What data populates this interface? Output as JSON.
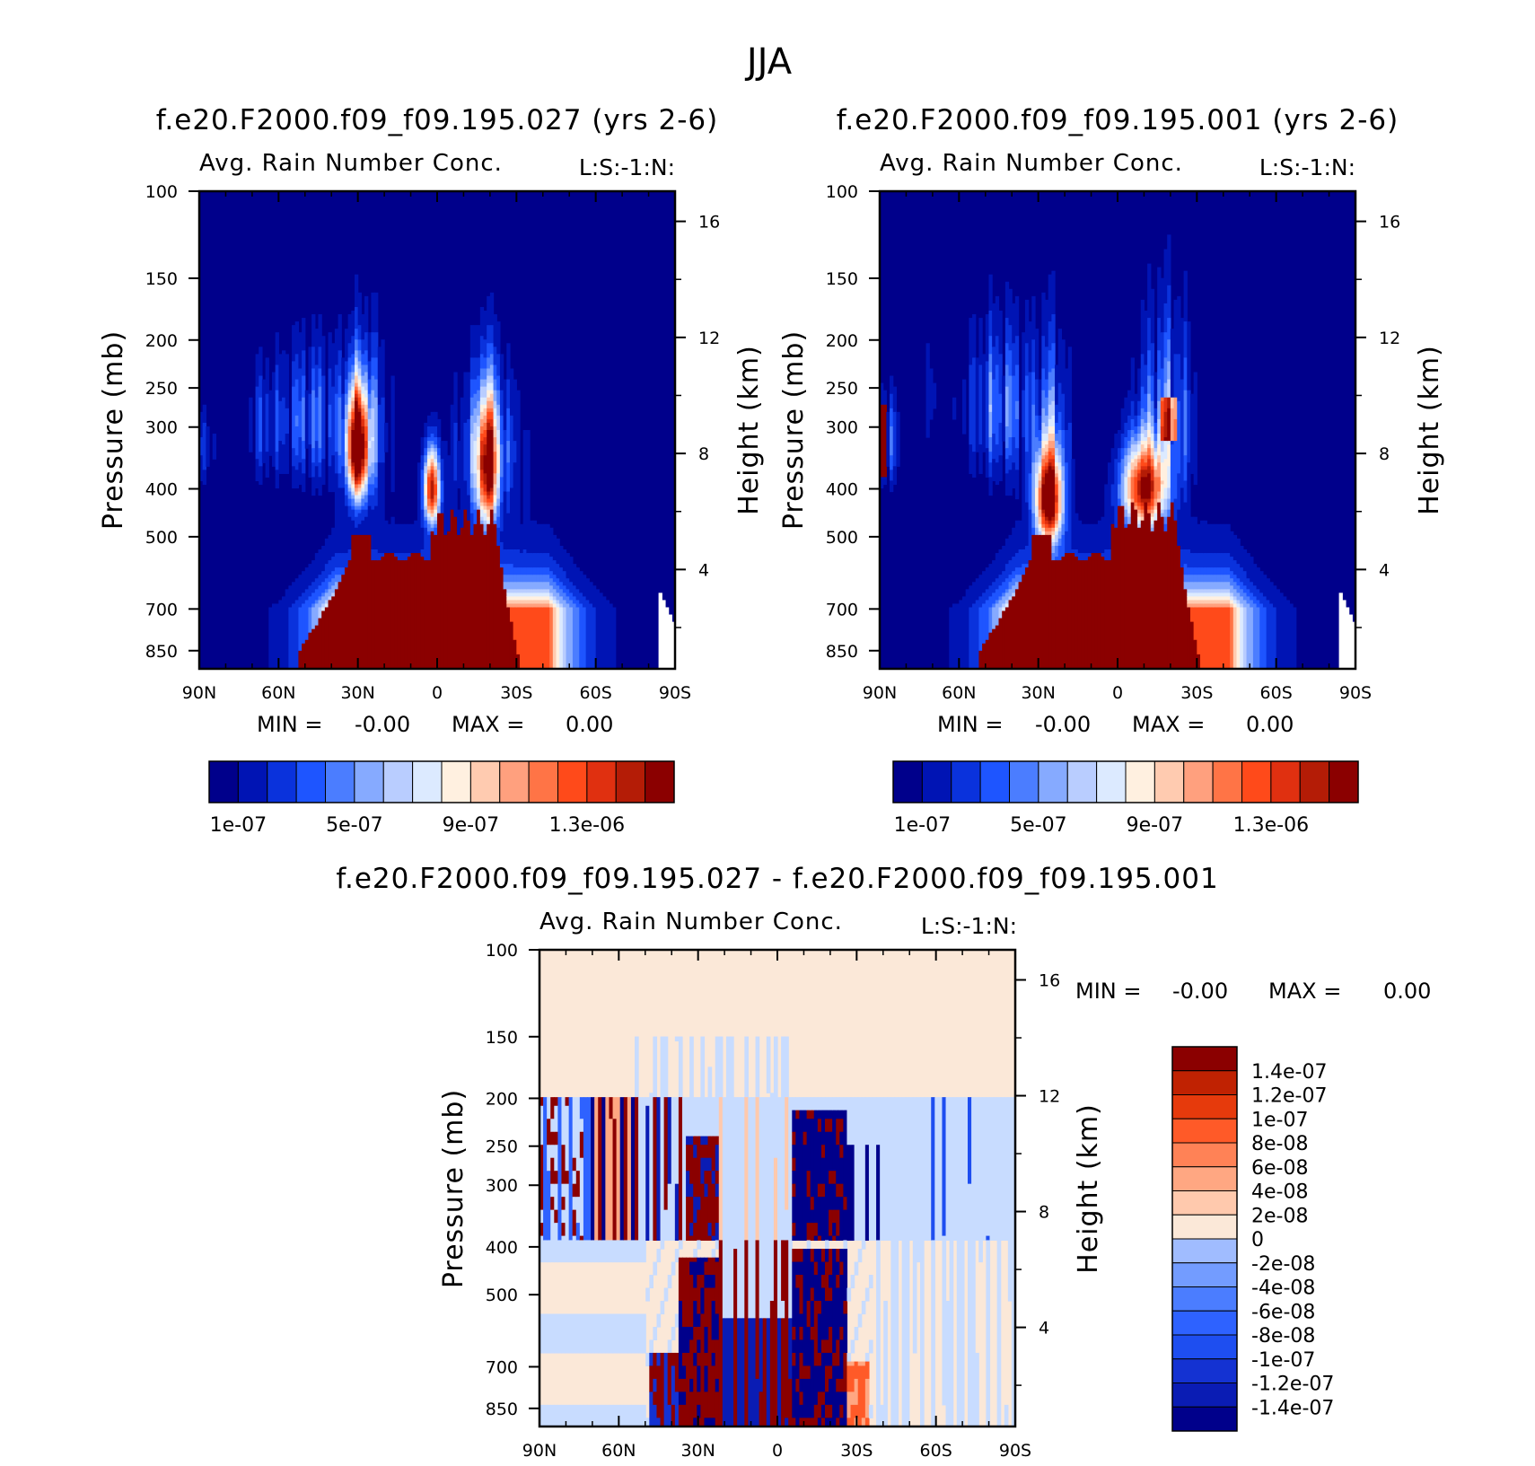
{
  "figure_title": "JJA",
  "colors": {
    "seq": [
      "#00008b",
      "#0014b4",
      "#0a32dc",
      "#1e55ff",
      "#4b7dff",
      "#86aaff",
      "#b9cdff",
      "#dceaff",
      "#fff0e0",
      "#ffcbb0",
      "#ffa07e",
      "#ff7446",
      "#ff4a1a",
      "#e03010",
      "#b41c06",
      "#8b0000"
    ],
    "diff": [
      "#00008b",
      "#0a1cb4",
      "#1432d2",
      "#1e4ef0",
      "#2e62ff",
      "#4b7dff",
      "#739cff",
      "#a0bcff",
      "#c8dcff",
      "#fbe8d8",
      "#ffc9ad",
      "#ffa782",
      "#ff8256",
      "#ff5a28",
      "#e63a0c",
      "#c02202",
      "#8b0000"
    ]
  },
  "chart_data": [
    {
      "type": "heatmap",
      "id": "panel-1",
      "title": "f.e20.F2000.f09_f09.195.027 (yrs 2-6)",
      "subtitle": "Avg. Rain Number Conc.",
      "code": "L:S:-1:N:",
      "xlabel": "",
      "ylabel": "Pressure (mb)",
      "ylabel_right": "Height (km)",
      "x_ticks": [
        "90N",
        "60N",
        "30N",
        "0",
        "30S",
        "60S",
        "90S"
      ],
      "xlim": [
        90,
        -90
      ],
      "y_ticks": [
        100,
        150,
        200,
        250,
        300,
        400,
        500,
        700,
        850
      ],
      "ylim": [
        100,
        925
      ],
      "y_scale": "log",
      "y_right_ticks": [
        4,
        8,
        12,
        16
      ],
      "min_label": "MIN =",
      "min_value": "-0.00",
      "max_label": "MAX =",
      "max_value": "0.00",
      "colorbar_labels": [
        "1e-07",
        "5e-07",
        "9e-07",
        "1.3e-06"
      ],
      "colorbar_levels": 16
    },
    {
      "type": "heatmap",
      "id": "panel-2",
      "title": "f.e20.F2000.f09_f09.195.001 (yrs 2-6)",
      "subtitle": "Avg. Rain Number Conc.",
      "code": "L:S:-1:N:",
      "xlabel": "",
      "ylabel": "Pressure (mb)",
      "ylabel_right": "Height (km)",
      "x_ticks": [
        "90N",
        "60N",
        "30N",
        "0",
        "30S",
        "60S",
        "90S"
      ],
      "xlim": [
        90,
        -90
      ],
      "y_ticks": [
        100,
        150,
        200,
        250,
        300,
        400,
        500,
        700,
        850
      ],
      "ylim": [
        100,
        925
      ],
      "y_scale": "log",
      "y_right_ticks": [
        4,
        8,
        12,
        16
      ],
      "min_label": "MIN =",
      "min_value": "-0.00",
      "max_label": "MAX =",
      "max_value": "0.00",
      "colorbar_labels": [
        "1e-07",
        "5e-07",
        "9e-07",
        "1.3e-06"
      ],
      "colorbar_levels": 16
    },
    {
      "type": "heatmap",
      "id": "panel-3",
      "title": "f.e20.F2000.f09_f09.195.027 - f.e20.F2000.f09_f09.195.001",
      "subtitle": "Avg. Rain Number Conc.",
      "code": "L:S:-1:N:",
      "xlabel": "",
      "ylabel": "Pressure (mb)",
      "ylabel_right": "Height (km)",
      "x_ticks": [
        "90N",
        "60N",
        "30N",
        "0",
        "30S",
        "60S",
        "90S"
      ],
      "xlim": [
        90,
        -90
      ],
      "y_ticks": [
        100,
        150,
        200,
        250,
        300,
        400,
        500,
        700,
        850
      ],
      "ylim": [
        100,
        925
      ],
      "y_scale": "log",
      "y_right_ticks": [
        4,
        8,
        12,
        16
      ],
      "min_label": "MIN =",
      "min_value": "-0.00",
      "max_label": "MAX =",
      "max_value": "0.00",
      "colorbar_labels": [
        "1.4e-07",
        "1.2e-07",
        "1e-07",
        "8e-08",
        "6e-08",
        "4e-08",
        "2e-08",
        "0",
        "-2e-08",
        "-4e-08",
        "-6e-08",
        "-8e-08",
        "-1e-07",
        "-1.2e-07",
        "-1.4e-07"
      ],
      "colorbar_levels": 16
    }
  ]
}
